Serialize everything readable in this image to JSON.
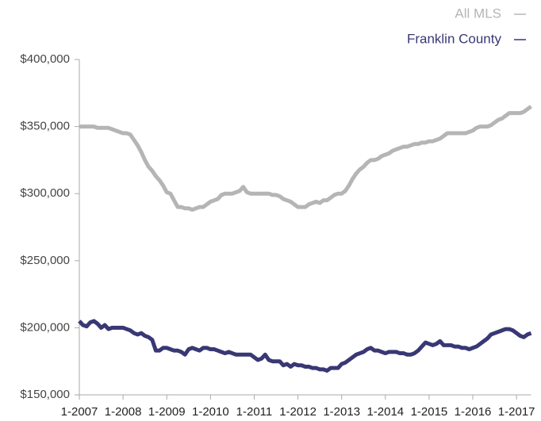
{
  "chart_data": {
    "type": "line",
    "categories": [
      "1-2007",
      null,
      null,
      null,
      null,
      null,
      null,
      null,
      null,
      null,
      null,
      null,
      "1-2008",
      null,
      null,
      null,
      null,
      null,
      null,
      null,
      null,
      null,
      null,
      null,
      "1-2009",
      null,
      null,
      null,
      null,
      null,
      null,
      null,
      null,
      null,
      null,
      null,
      "1-2010",
      null,
      null,
      null,
      null,
      null,
      null,
      null,
      null,
      null,
      null,
      null,
      "1-2011",
      null,
      null,
      null,
      null,
      null,
      null,
      null,
      null,
      null,
      null,
      null,
      "1-2012",
      null,
      null,
      null,
      null,
      null,
      null,
      null,
      null,
      null,
      null,
      null,
      "1-2013",
      null,
      null,
      null,
      null,
      null,
      null,
      null,
      null,
      null,
      null,
      null,
      "1-2014",
      null,
      null,
      null,
      null,
      null,
      null,
      null,
      null,
      null,
      null,
      null,
      "1-2015",
      null,
      null,
      null,
      null,
      null,
      null,
      null,
      null,
      null,
      null,
      null,
      "1-2016",
      null,
      null,
      null,
      null,
      null,
      null,
      null,
      null,
      null,
      null,
      null,
      "1-2017",
      null,
      null,
      null,
      null
    ],
    "series": [
      {
        "name": "All MLS",
        "color": "#b5b5b5",
        "values": [
          350000,
          350000,
          350000,
          350000,
          350000,
          349000,
          349000,
          349000,
          349000,
          348000,
          347000,
          346000,
          345000,
          345000,
          344000,
          340000,
          336000,
          331000,
          325000,
          320000,
          317000,
          313000,
          310000,
          306000,
          301000,
          300000,
          295000,
          290000,
          290000,
          289000,
          289000,
          288000,
          289000,
          290000,
          290000,
          292000,
          294000,
          295000,
          296000,
          299000,
          300000,
          300000,
          300000,
          301000,
          302000,
          305000,
          301000,
          300000,
          300000,
          300000,
          300000,
          300000,
          300000,
          299000,
          299000,
          298000,
          296000,
          295000,
          294000,
          292000,
          290000,
          290000,
          290000,
          292000,
          293000,
          294000,
          293000,
          295000,
          295000,
          297000,
          299000,
          300000,
          300000,
          302000,
          306000,
          311000,
          315000,
          318000,
          320000,
          323000,
          325000,
          325000,
          326000,
          328000,
          329000,
          330000,
          332000,
          333000,
          334000,
          335000,
          335000,
          336000,
          337000,
          337000,
          338000,
          338000,
          339000,
          339000,
          340000,
          341000,
          343000,
          345000,
          345000,
          345000,
          345000,
          345000,
          345000,
          346000,
          347000,
          349000,
          350000,
          350000,
          350000,
          351000,
          353000,
          355000,
          356000,
          358000,
          360000,
          360000,
          360000,
          360000,
          361000,
          363000,
          365000
        ]
      },
      {
        "name": "Franklin County",
        "color": "#393874",
        "values": [
          205000,
          202000,
          201000,
          204000,
          205000,
          203000,
          200000,
          202000,
          199000,
          200000,
          200000,
          200000,
          200000,
          199000,
          198000,
          196000,
          195000,
          196000,
          194000,
          193000,
          191000,
          183000,
          183000,
          185000,
          185000,
          184000,
          183000,
          183000,
          182000,
          180000,
          184000,
          185000,
          184000,
          183000,
          185000,
          185000,
          184000,
          184000,
          183000,
          182000,
          181000,
          182000,
          181000,
          180000,
          180000,
          180000,
          180000,
          180000,
          178000,
          176000,
          177000,
          180000,
          176000,
          175000,
          175000,
          175000,
          172000,
          173000,
          171000,
          173000,
          172000,
          172000,
          171000,
          171000,
          170000,
          170000,
          169000,
          169000,
          168000,
          170000,
          170000,
          170000,
          173000,
          174000,
          176000,
          178000,
          180000,
          181000,
          182000,
          184000,
          185000,
          183000,
          183000,
          182000,
          181000,
          182000,
          182000,
          182000,
          181000,
          181000,
          180000,
          180000,
          181000,
          183000,
          186000,
          189000,
          188000,
          187000,
          188000,
          190000,
          187000,
          187000,
          187000,
          186000,
          186000,
          185000,
          185000,
          184000,
          185000,
          186000,
          188000,
          190000,
          192000,
          195000,
          196000,
          197000,
          198000,
          199000,
          199000,
          198000,
          196000,
          194000,
          193000,
          195000,
          196000
        ]
      }
    ],
    "ylim": [
      150000,
      400000
    ],
    "yticks": [
      {
        "value": 150000,
        "label": "$150,000"
      },
      {
        "value": 200000,
        "label": "$200,000"
      },
      {
        "value": 250000,
        "label": "$250,000"
      },
      {
        "value": 300000,
        "label": "$300,000"
      },
      {
        "value": 350000,
        "label": "$350,000"
      },
      {
        "value": 400000,
        "label": "$400,000"
      }
    ],
    "grid": false,
    "legend": "top-right"
  }
}
